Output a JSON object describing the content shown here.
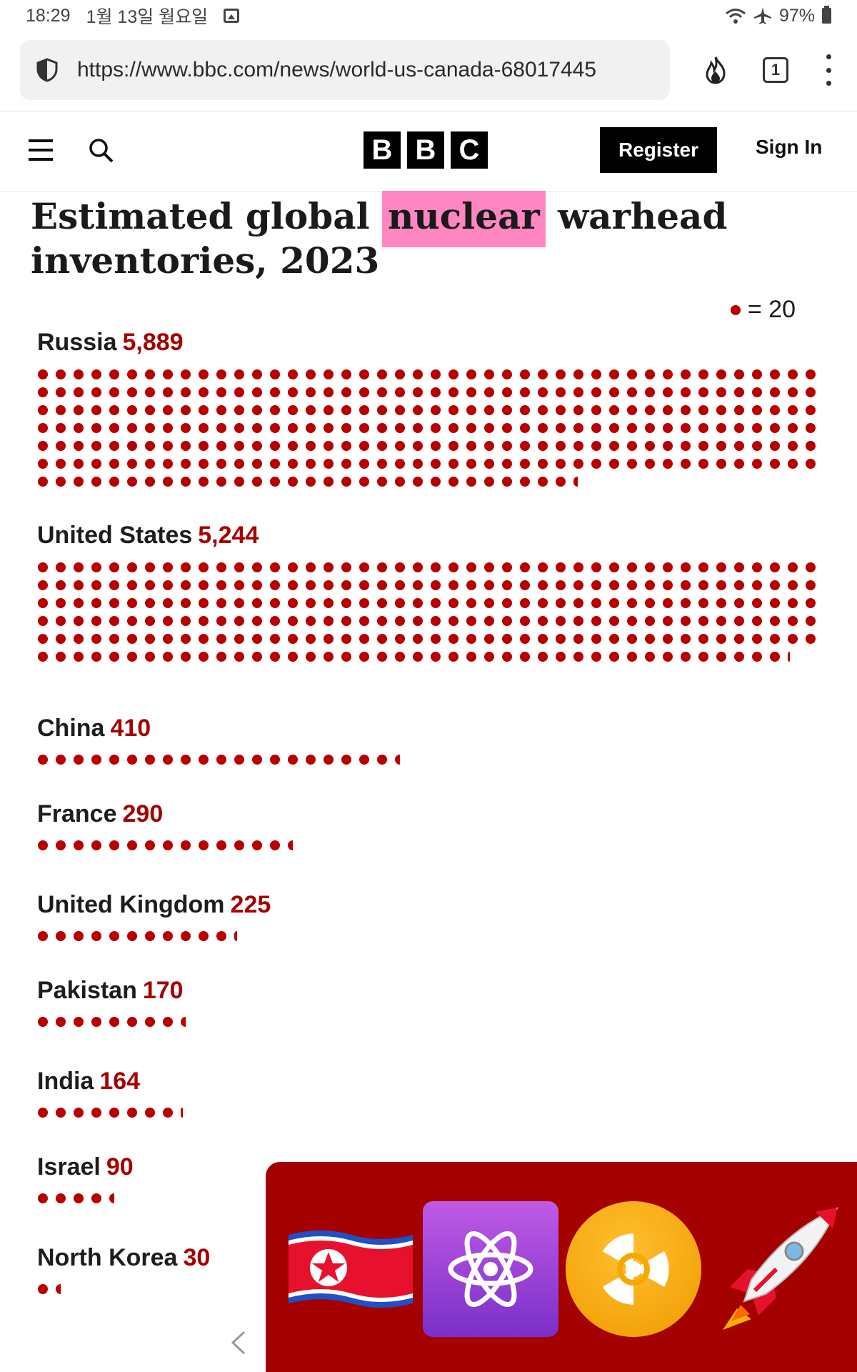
{
  "status_bar": {
    "time": "18:29",
    "date": "1월 13일 월요일",
    "battery": "97%"
  },
  "browser": {
    "url": "https://www.bbc.com/news/world-us-canada-68017445",
    "tab_count": "1"
  },
  "header": {
    "logo_letters": [
      "B",
      "B",
      "C"
    ],
    "register_label": "Register",
    "signin_label": "Sign In"
  },
  "article": {
    "title_before": "Estimated global ",
    "title_highlight": "nuclear",
    "title_after": " warhead inventories, 2023"
  },
  "chart_data": {
    "type": "dot-plot",
    "title": "Estimated global nuclear warhead inventories, 2023",
    "legend": "= 20",
    "unit_per_dot": 20,
    "categories": [
      "Russia",
      "United States",
      "China",
      "France",
      "United Kingdom",
      "Pakistan",
      "India",
      "Israel",
      "North Korea"
    ],
    "values": [
      5889,
      5244,
      410,
      290,
      225,
      170,
      164,
      90,
      30
    ],
    "value_labels": [
      "5,889",
      "5,244",
      "410",
      "290",
      "225",
      "170",
      "164",
      "90",
      "30"
    ],
    "dot_color": "#b80000",
    "value_color": "#a50000"
  },
  "overlay": {
    "background": "#a50000",
    "emojis": [
      "north-korea-flag-icon",
      "atom-symbol-icon",
      "radioactive-icon",
      "rocket-icon"
    ]
  }
}
